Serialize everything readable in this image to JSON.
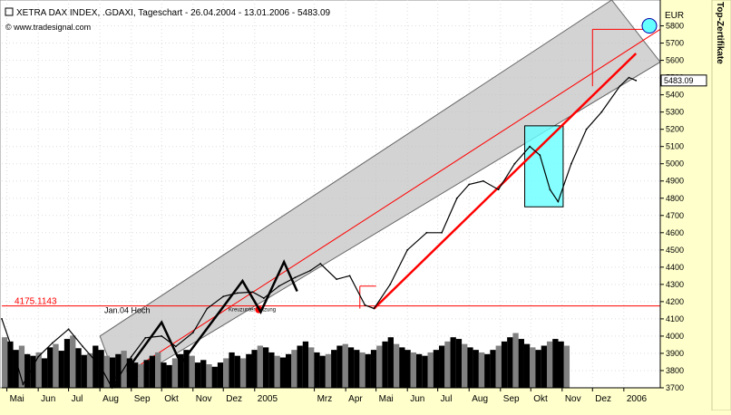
{
  "header": {
    "title": "XETRA DAX INDEX, .GDAXI, Tageschart - 26.04.2004 - 13.01.2006 - 5483.09",
    "source": "© www.tradesignal.com",
    "sidebar_label": "Top-Zertifikate"
  },
  "chart_data": {
    "type": "line",
    "title": "XETRA DAX INDEX, .GDAXI, Tageschart - 26.04.2004 - 13.01.2006 - 5483.09",
    "subtitle": "© www.tradesignal.com",
    "xlabel": "",
    "ylabel": "EUR",
    "ylim": [
      3700,
      5950
    ],
    "yticks": [
      3700,
      3800,
      3900,
      4000,
      4100,
      4200,
      4300,
      4400,
      4500,
      4600,
      4700,
      4800,
      4900,
      5000,
      5100,
      5200,
      5300,
      5400,
      5500,
      5600,
      5700,
      5800
    ],
    "xlim": [
      "2004-04-26",
      "2006-02-06"
    ],
    "xticks": [
      {
        "label": "Mai",
        "date": "2004-05-01"
      },
      {
        "label": "Jun",
        "date": "2004-06-01"
      },
      {
        "label": "Jul",
        "date": "2004-07-01"
      },
      {
        "label": "Aug",
        "date": "2004-08-01"
      },
      {
        "label": "Sep",
        "date": "2004-09-01"
      },
      {
        "label": "Okt",
        "date": "2004-10-01"
      },
      {
        "label": "Nov",
        "date": "2004-11-01"
      },
      {
        "label": "Dez",
        "date": "2004-12-01"
      },
      {
        "label": "2005",
        "date": "2005-01-01"
      },
      {
        "label": "Mrz",
        "date": "2005-03-01"
      },
      {
        "label": "Apr",
        "date": "2005-04-01"
      },
      {
        "label": "Mai",
        "date": "2005-05-01"
      },
      {
        "label": "Jun",
        "date": "2005-06-01"
      },
      {
        "label": "Jul",
        "date": "2005-07-01"
      },
      {
        "label": "Aug",
        "date": "2005-08-01"
      },
      {
        "label": "Sep",
        "date": "2005-09-01"
      },
      {
        "label": "Okt",
        "date": "2005-10-01"
      },
      {
        "label": "Nov",
        "date": "2005-11-01"
      },
      {
        "label": "Dez",
        "date": "2005-12-01"
      },
      {
        "label": "2006",
        "date": "2006-01-01"
      }
    ],
    "series": [
      {
        "values": [
          [
            "2004-04-26",
            4100
          ],
          [
            "2004-05-10",
            3860
          ],
          [
            "2004-05-17",
            3720
          ],
          [
            "2004-06-01",
            3880
          ],
          [
            "2004-06-15",
            3960
          ],
          [
            "2004-07-01",
            4040
          ],
          [
            "2004-07-15",
            3940
          ],
          [
            "2004-08-02",
            3820
          ],
          [
            "2004-08-13",
            3700
          ],
          [
            "2004-09-01",
            3880
          ],
          [
            "2004-09-15",
            3990
          ],
          [
            "2004-10-01",
            4000
          ],
          [
            "2004-10-15",
            3940
          ],
          [
            "2004-11-01",
            4020
          ],
          [
            "2004-11-15",
            4160
          ],
          [
            "2004-12-01",
            4230
          ],
          [
            "2004-12-15",
            4250
          ],
          [
            "2004-12-30",
            4256
          ],
          [
            "2005-01-10",
            4220
          ],
          [
            "2005-01-25",
            4290
          ],
          [
            "2005-02-10",
            4340
          ],
          [
            "2005-02-25",
            4380
          ],
          [
            "2005-03-07",
            4420
          ],
          [
            "2005-03-23",
            4330
          ],
          [
            "2005-04-05",
            4350
          ],
          [
            "2005-04-20",
            4180
          ],
          [
            "2005-04-29",
            4160
          ],
          [
            "2005-05-15",
            4300
          ],
          [
            "2005-06-01",
            4500
          ],
          [
            "2005-06-20",
            4600
          ],
          [
            "2005-07-05",
            4600
          ],
          [
            "2005-07-20",
            4800
          ],
          [
            "2005-08-01",
            4880
          ],
          [
            "2005-08-15",
            4900
          ],
          [
            "2005-08-30",
            4850
          ],
          [
            "2005-09-15",
            5000
          ],
          [
            "2005-09-30",
            5100
          ],
          [
            "2005-10-10",
            5050
          ],
          [
            "2005-10-20",
            4850
          ],
          [
            "2005-10-28",
            4780
          ],
          [
            "2005-11-10",
            5000
          ],
          [
            "2005-11-25",
            5200
          ],
          [
            "2005-12-10",
            5300
          ],
          [
            "2005-12-28",
            5450
          ],
          [
            "2006-01-06",
            5500
          ],
          [
            "2006-01-13",
            5483
          ]
        ]
      }
    ],
    "volume": {
      "ylim": [
        0,
        100
      ],
      "values": [
        60,
        55,
        45,
        50,
        40,
        38,
        42,
        35,
        48,
        52,
        44,
        58,
        62,
        47,
        39,
        41,
        50,
        45,
        38,
        36,
        40,
        44,
        35,
        30,
        28,
        33,
        38,
        42,
        30,
        27,
        35,
        40,
        45,
        38,
        30,
        33,
        28,
        25,
        30,
        35,
        42,
        38,
        35,
        40,
        45,
        50,
        48,
        42,
        38,
        36,
        40,
        45,
        50,
        55,
        48,
        42,
        38,
        40,
        45,
        50,
        52,
        48,
        45,
        42,
        40,
        45,
        50,
        55,
        60,
        52,
        48,
        45,
        42,
        40,
        38,
        42,
        45,
        50,
        55,
        60,
        58,
        52,
        48,
        45,
        42,
        40,
        45,
        50,
        55,
        60,
        65,
        58,
        52,
        48,
        45,
        50,
        55,
        58,
        55,
        50
      ]
    },
    "annotations": [
      {
        "text": "4175.1143",
        "y": 4175,
        "color": "#ff0000"
      },
      {
        "text": "Jan.04 Hoch",
        "y": 4175
      },
      {
        "text": "Kreuzunterstützung",
        "y": 4175
      },
      {
        "text": "5483.09",
        "y": 5483
      }
    ],
    "grid": true,
    "legend": "none",
    "colors": {
      "background": "#ffffcc",
      "plot_background": "#ffffff",
      "price": "#000000",
      "trend": "#ff0000",
      "channel": "#c0c0c0",
      "highlight": "#66ffff",
      "grid": "#dddddd"
    }
  }
}
